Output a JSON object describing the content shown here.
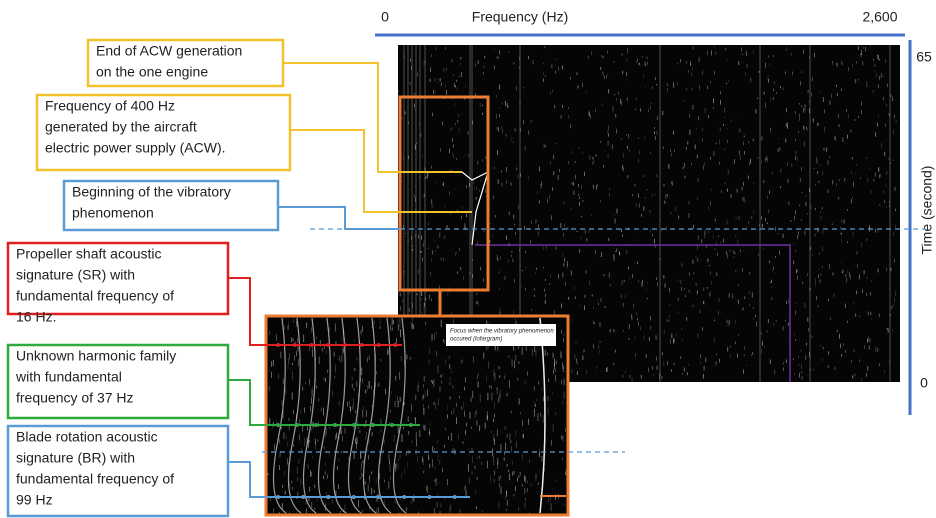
{
  "axes": {
    "x_min": "0",
    "x_label": "Frequency (Hz)",
    "x_max": "2,600",
    "y_max": "65",
    "y_min": "0",
    "y_label": "Time (second)",
    "color": "#4472c4"
  },
  "annotations": [
    {
      "lines": [
        "End of ACW generation",
        "on the one engine"
      ],
      "color": "#f2c12e"
    },
    {
      "lines": [
        "Frequency of 400 Hz",
        "generated by the aircraft",
        "electric power supply (ACW)."
      ],
      "color": "#f2c12e"
    },
    {
      "lines": [
        "Beginning of the vibratory",
        "phenomenon"
      ],
      "color": "#5b9bd5"
    },
    {
      "lines": [
        "Propeller shaft acoustic",
        "signature (SR) with",
        "fundamental frequency of",
        "16 Hz."
      ],
      "color": "#e02020"
    },
    {
      "lines": [
        "Unknown harmonic family",
        "with fundamental",
        "frequency of 37 Hz"
      ],
      "color": "#2eaa3c"
    },
    {
      "lines": [
        "Blade rotation acoustic",
        "signature (BR) with",
        "fundamental frequency of",
        "99 Hz"
      ],
      "color": "#5b9bd5"
    }
  ],
  "inset": {
    "caption": [
      "Focus when the vibratory phenomenon",
      "occured (lofargram)"
    ],
    "color": "#ed7d31"
  }
}
